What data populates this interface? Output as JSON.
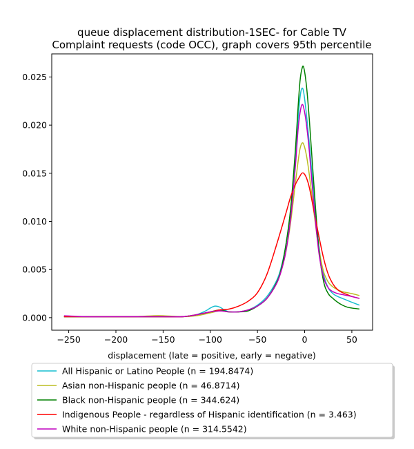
{
  "chart_data": {
    "type": "line",
    "title": [
      "queue displacement distribution-1SEC-  for Cable TV",
      "Complaint  requests (code OCC), graph covers 95th percentile"
    ],
    "xlabel": "displacement (late = positive, early = negative)",
    "ylabel": "",
    "xlim": [
      -268,
      72
    ],
    "ylim": [
      -0.0013,
      0.0274
    ],
    "xticks": [
      -250,
      -200,
      -150,
      -100,
      -50,
      0,
      50
    ],
    "xtick_labels": [
      "−250",
      "−200",
      "−150",
      "−100",
      "−50",
      "0",
      "50"
    ],
    "yticks": [
      0.0,
      0.005,
      0.01,
      0.015,
      0.02,
      0.025
    ],
    "ytick_labels": [
      "0.000",
      "0.005",
      "0.010",
      "0.015",
      "0.020",
      "0.025"
    ],
    "legend_position": "below",
    "series": [
      {
        "name": "All Hispanic or Latino People (n = 194.8474)",
        "color": "#17becf",
        "x": [
          -255,
          -230,
          -200,
          -170,
          -150,
          -130,
          -115,
          -105,
          -100,
          -95,
          -90,
          -85,
          -80,
          -75,
          -70,
          -60,
          -50,
          -40,
          -30,
          -25,
          -20,
          -15,
          -10,
          -7,
          -5,
          -3,
          -1,
          2,
          5,
          10,
          15,
          20,
          25,
          30,
          35,
          40,
          45,
          50,
          58
        ],
        "y": [
          0.0001,
          0.0001,
          0.0001,
          0.0001,
          0.0001,
          0.0001,
          0.0003,
          0.0007,
          0.001,
          0.0012,
          0.0011,
          0.0008,
          0.0006,
          0.0006,
          0.0006,
          0.0008,
          0.0013,
          0.0022,
          0.0038,
          0.0052,
          0.0075,
          0.011,
          0.0165,
          0.0205,
          0.0228,
          0.0238,
          0.0234,
          0.021,
          0.018,
          0.0125,
          0.0075,
          0.0045,
          0.0031,
          0.0025,
          0.0022,
          0.002,
          0.0018,
          0.0016,
          0.0013
        ]
      },
      {
        "name": "Asian non-Hispanic people (n = 46.8714)",
        "color": "#bcbd22",
        "x": [
          -255,
          -230,
          -200,
          -180,
          -160,
          -150,
          -130,
          -115,
          -100,
          -90,
          -80,
          -70,
          -60,
          -50,
          -40,
          -30,
          -25,
          -20,
          -15,
          -10,
          -7,
          -5,
          -3,
          -1,
          2,
          5,
          10,
          15,
          20,
          25,
          30,
          35,
          40,
          45,
          50,
          58
        ],
        "y": [
          0.0001,
          0.0001,
          0.0001,
          0.0001,
          0.0002,
          0.0002,
          0.0001,
          0.0002,
          0.0005,
          0.0007,
          0.0006,
          0.0006,
          0.0008,
          0.0012,
          0.002,
          0.0035,
          0.0048,
          0.0068,
          0.0098,
          0.0138,
          0.0162,
          0.0175,
          0.0181,
          0.018,
          0.0168,
          0.0148,
          0.0108,
          0.0072,
          0.0048,
          0.0037,
          0.0032,
          0.0029,
          0.0027,
          0.0026,
          0.0025,
          0.0023
        ]
      },
      {
        "name": "Black non-Hispanic people (n = 344.624)",
        "color": "#008000",
        "x": [
          -255,
          -230,
          -200,
          -170,
          -150,
          -130,
          -115,
          -100,
          -90,
          -80,
          -70,
          -60,
          -50,
          -40,
          -30,
          -25,
          -20,
          -15,
          -10,
          -7,
          -5,
          -3,
          -1,
          2,
          5,
          10,
          15,
          20,
          25,
          30,
          35,
          40,
          45,
          50,
          58
        ],
        "y": [
          0.0001,
          0.0001,
          0.0001,
          0.0001,
          0.0001,
          0.0001,
          0.0003,
          0.0006,
          0.0008,
          0.0006,
          0.0006,
          0.0007,
          0.0012,
          0.002,
          0.0036,
          0.005,
          0.0075,
          0.0112,
          0.0172,
          0.0218,
          0.0245,
          0.0258,
          0.026,
          0.024,
          0.0205,
          0.0135,
          0.0072,
          0.0038,
          0.0025,
          0.002,
          0.0016,
          0.0013,
          0.0011,
          0.001,
          0.0009
        ]
      },
      {
        "name": "Indigenous People - regardless of Hispanic identification (n = 3.463)",
        "color": "#ff0000",
        "x": [
          -255,
          -230,
          -200,
          -170,
          -150,
          -130,
          -115,
          -100,
          -90,
          -80,
          -70,
          -60,
          -50,
          -40,
          -30,
          -20,
          -15,
          -10,
          -5,
          -3,
          -1,
          2,
          5,
          10,
          15,
          20,
          25,
          30,
          35,
          40,
          45,
          50,
          58
        ],
        "y": [
          0.0001,
          0.0001,
          0.0001,
          0.0001,
          0.0001,
          0.0001,
          0.0003,
          0.0006,
          0.0008,
          0.0009,
          0.0012,
          0.0017,
          0.0026,
          0.0045,
          0.0075,
          0.0108,
          0.0125,
          0.0138,
          0.0147,
          0.015,
          0.015,
          0.0145,
          0.0135,
          0.011,
          0.0085,
          0.0062,
          0.0045,
          0.0035,
          0.0029,
          0.0026,
          0.0024,
          0.0022,
          0.002
        ]
      },
      {
        "name": "White non-Hispanic people (n = 314.5542)",
        "color": "#bf00bf",
        "x": [
          -255,
          -230,
          -200,
          -170,
          -150,
          -130,
          -115,
          -100,
          -90,
          -80,
          -70,
          -60,
          -50,
          -40,
          -30,
          -25,
          -20,
          -15,
          -10,
          -7,
          -5,
          -3,
          -1,
          2,
          5,
          10,
          15,
          20,
          25,
          30,
          35,
          40,
          45,
          50,
          58
        ],
        "y": [
          0.0002,
          0.0001,
          0.0001,
          0.0001,
          0.0001,
          0.0001,
          0.0003,
          0.0006,
          0.0007,
          0.0006,
          0.0006,
          0.0008,
          0.0012,
          0.002,
          0.0035,
          0.0048,
          0.0068,
          0.0102,
          0.0155,
          0.0195,
          0.0212,
          0.0221,
          0.0218,
          0.02,
          0.0172,
          0.0115,
          0.0068,
          0.0042,
          0.0031,
          0.0027,
          0.0025,
          0.0024,
          0.0023,
          0.0022,
          0.002
        ]
      }
    ]
  }
}
